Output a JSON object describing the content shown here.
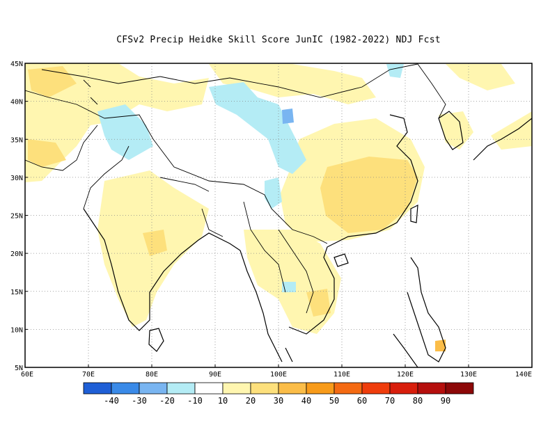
{
  "title": "CFSv2 Precip Heidke Skill Score JunIC (1982-2022) NDJ Fcst",
  "map": {
    "lon_range": [
      60,
      140
    ],
    "lat_range": [
      5,
      45
    ],
    "lat_ticks": [
      "5N",
      "10N",
      "15N",
      "20N",
      "25N",
      "30N",
      "35N",
      "40N",
      "45N"
    ],
    "lon_ticks": [
      "60E",
      "70E",
      "80E",
      "90E",
      "100E",
      "110E",
      "120E",
      "130E",
      "140E"
    ],
    "grid": "dotted"
  },
  "colorbar": {
    "colors": [
      "#1f5fd6",
      "#3a8ae8",
      "#79b5f1",
      "#b4ecf5",
      "#ffffff",
      "#fff6b0",
      "#fde07c",
      "#fbbd48",
      "#f89b1a",
      "#f46a12",
      "#ef3d0c",
      "#d81e0c",
      "#b50f0d",
      "#8c0808"
    ],
    "labels": [
      "-40",
      "-30",
      "-20",
      "-10",
      "10",
      "20",
      "30",
      "40",
      "50",
      "60",
      "70",
      "80",
      "90"
    ]
  }
}
